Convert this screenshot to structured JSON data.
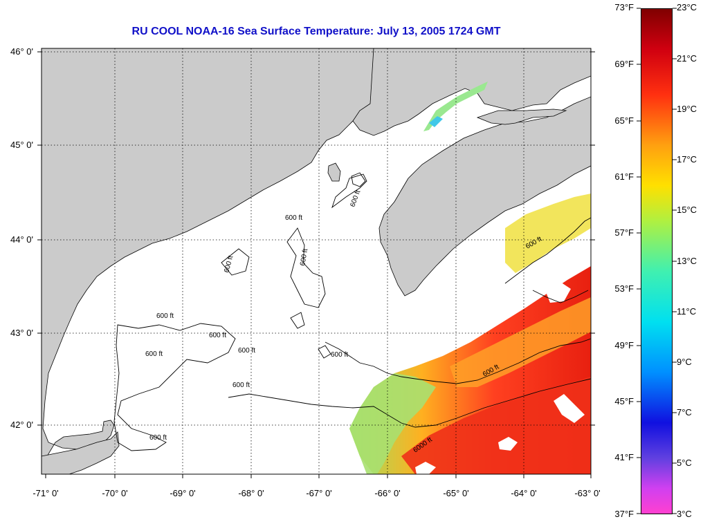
{
  "title": "RU COOL  NOAA-16  Sea Surface Temperature:  July 13, 2005 1724 GMT",
  "latitude_labels": [
    "46° 0'",
    "45° 0'",
    "44° 0'",
    "43° 0'",
    "42° 0'"
  ],
  "longitude_labels": [
    "-71° 0'",
    "-70° 0'",
    "-69° 0'",
    "-68° 0'",
    "-67° 0'",
    "-66° 0'",
    "-65° 0'",
    "-64° 0'",
    "-63° 0'"
  ],
  "contour_labels": [
    "600 ft",
    "600 ft",
    "600 ft",
    "600 ft",
    "600 ft",
    "600 ft",
    "600 ft",
    "600 ft",
    "600 ft",
    "600 ft",
    "600 ft",
    "600 ft",
    "600 ft",
    "6000 ft"
  ],
  "colorbar": {
    "fahrenheit": [
      "73°F",
      "69°F",
      "65°F",
      "61°F",
      "57°F",
      "53°F",
      "49°F",
      "45°F",
      "41°F",
      "37°F"
    ],
    "celsius": [
      "23°C",
      "21°C",
      "19°C",
      "17°C",
      "15°C",
      "13°C",
      "11°C",
      "9°C",
      "7°C",
      "5°C",
      "3°C"
    ]
  },
  "colors": {
    "land": "#cbcbcb",
    "cloud_or_no_data": "#ffffff",
    "title": "#1010c8"
  }
}
